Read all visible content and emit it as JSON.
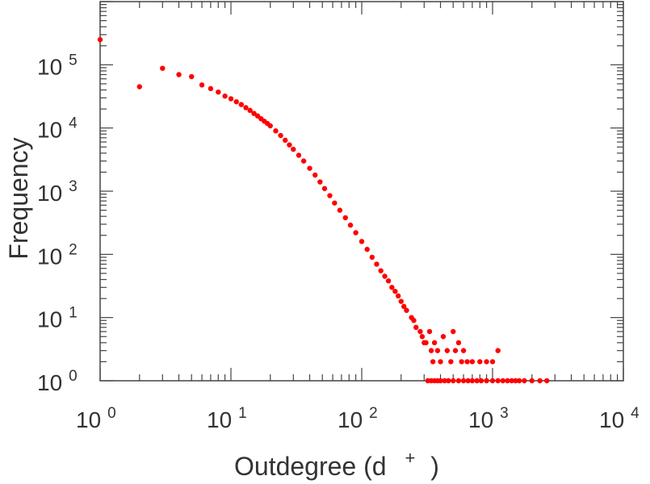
{
  "chart_data": {
    "type": "scatter",
    "xlabel": "Outdegree (d",
    "xlabel_sup": "+",
    "xlabel_close": ")",
    "ylabel": "Frequency",
    "x_scale": "log",
    "y_scale": "log",
    "xlim": [
      1,
      10000
    ],
    "ylim": [
      1,
      1000000
    ],
    "grid": false,
    "marker_color": "#ff0000",
    "x_ticks": [
      {
        "base": "10",
        "exp": "0"
      },
      {
        "base": "10",
        "exp": "1"
      },
      {
        "base": "10",
        "exp": "2"
      },
      {
        "base": "10",
        "exp": "3"
      },
      {
        "base": "10",
        "exp": "4"
      }
    ],
    "y_ticks": [
      {
        "base": "10",
        "exp": "0"
      },
      {
        "base": "10",
        "exp": "1"
      },
      {
        "base": "10",
        "exp": "2"
      },
      {
        "base": "10",
        "exp": "3"
      },
      {
        "base": "10",
        "exp": "4"
      },
      {
        "base": "10",
        "exp": "5"
      }
    ],
    "points": [
      [
        1,
        250000
      ],
      [
        2,
        45000
      ],
      [
        3,
        88000
      ],
      [
        4,
        70000
      ],
      [
        5,
        65000
      ],
      [
        6,
        48000
      ],
      [
        7,
        42000
      ],
      [
        8,
        37000
      ],
      [
        9,
        32000
      ],
      [
        10,
        29000
      ],
      [
        11,
        26000
      ],
      [
        12,
        23500
      ],
      [
        13,
        21000
      ],
      [
        14,
        19000
      ],
      [
        15,
        17000
      ],
      [
        16,
        15500
      ],
      [
        17,
        14000
      ],
      [
        18,
        12800
      ],
      [
        19,
        11800
      ],
      [
        20,
        10800
      ],
      [
        22,
        9000
      ],
      [
        24,
        7600
      ],
      [
        26,
        6400
      ],
      [
        28,
        5400
      ],
      [
        30,
        4600
      ],
      [
        33,
        3700
      ],
      [
        36,
        3000
      ],
      [
        40,
        2300
      ],
      [
        44,
        1800
      ],
      [
        48,
        1400
      ],
      [
        52,
        1100
      ],
      [
        57,
        850
      ],
      [
        62,
        650
      ],
      [
        68,
        500
      ],
      [
        75,
        380
      ],
      [
        82,
        290
      ],
      [
        90,
        220
      ],
      [
        100,
        160
      ],
      [
        110,
        120
      ],
      [
        120,
        90
      ],
      [
        130,
        70
      ],
      [
        140,
        55
      ],
      [
        150,
        45
      ],
      [
        160,
        38
      ],
      [
        170,
        30
      ],
      [
        180,
        26
      ],
      [
        190,
        22
      ],
      [
        200,
        18
      ],
      [
        210,
        15
      ],
      [
        220,
        13
      ],
      [
        240,
        10
      ],
      [
        250,
        9
      ],
      [
        260,
        7
      ],
      [
        280,
        6
      ],
      [
        290,
        5
      ],
      [
        300,
        4
      ],
      [
        310,
        4
      ],
      [
        330,
        6
      ],
      [
        340,
        3
      ],
      [
        350,
        2
      ],
      [
        360,
        4
      ],
      [
        380,
        3
      ],
      [
        400,
        2
      ],
      [
        420,
        5
      ],
      [
        450,
        3
      ],
      [
        480,
        2
      ],
      [
        500,
        6
      ],
      [
        520,
        3
      ],
      [
        550,
        4
      ],
      [
        580,
        2
      ],
      [
        600,
        3
      ],
      [
        640,
        2
      ],
      [
        700,
        2
      ],
      [
        800,
        2
      ],
      [
        900,
        2
      ],
      [
        1000,
        2
      ],
      [
        1100,
        3
      ],
      [
        320,
        1
      ],
      [
        340,
        1
      ],
      [
        360,
        1
      ],
      [
        380,
        1
      ],
      [
        400,
        1
      ],
      [
        430,
        1
      ],
      [
        460,
        1
      ],
      [
        500,
        1
      ],
      [
        550,
        1
      ],
      [
        600,
        1
      ],
      [
        650,
        1
      ],
      [
        700,
        1
      ],
      [
        760,
        1
      ],
      [
        820,
        1
      ],
      [
        900,
        1
      ],
      [
        1000,
        1
      ],
      [
        1100,
        1
      ],
      [
        1200,
        1
      ],
      [
        1300,
        1
      ],
      [
        1400,
        1
      ],
      [
        1500,
        1
      ],
      [
        1600,
        1
      ],
      [
        1750,
        1
      ],
      [
        2000,
        1
      ],
      [
        2300,
        1
      ],
      [
        2600,
        1
      ]
    ]
  }
}
